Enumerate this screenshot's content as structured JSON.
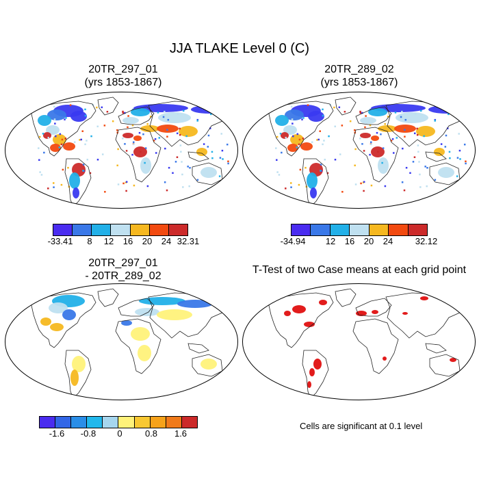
{
  "title": "JJA TLAKE Level 0 (C)",
  "panels": {
    "top_left": {
      "title_line1": "20TR_297_01",
      "title_line2": "(yrs 1853-1867)"
    },
    "top_right": {
      "title_line1": "20TR_289_02",
      "title_line2": "(yrs 1853-1867)"
    },
    "bottom_left": {
      "title_line1": "20TR_297_01",
      "title_line2": "- 20TR_289_02"
    },
    "bottom_right": {
      "title_line1": "T-Test of two Case means at each grid point"
    }
  },
  "colorbar_top_left": {
    "colors": [
      "#4a2cf0",
      "#3a78e8",
      "#22b0e8",
      "#bfe0f0",
      "#f6b820",
      "#f24a10",
      "#cc2a2a"
    ],
    "labels": [
      "-33.41",
      "8",
      "12",
      "16",
      "20",
      "24",
      "32.31"
    ]
  },
  "colorbar_top_right": {
    "colors": [
      "#4a2cf0",
      "#3a78e8",
      "#22b0e8",
      "#bfe0f0",
      "#f6b820",
      "#f24a10",
      "#cc2a2a"
    ],
    "labels": [
      "-34.94",
      "12",
      "16",
      "20",
      "24",
      "32.12"
    ]
  },
  "colorbar_diff": {
    "colors": [
      "#4a2cf0",
      "#3266e6",
      "#2a8ee8",
      "#22b8ec",
      "#a6d6ee",
      "#fff27a",
      "#f8c832",
      "#f6a21a",
      "#f07a1a",
      "#cc2a2a"
    ],
    "labels": [
      "-1.6",
      "-0.8",
      "0",
      "0.8",
      "1.6"
    ]
  },
  "significance_note": "Cells are significant at 0.1 level",
  "map_colors": {
    "cold": "#3a3af0",
    "cool": "#3a78e8",
    "sky": "#22b0e8",
    "pale": "#bfe0f0",
    "warm": "#f6b820",
    "hot": "#f24a10",
    "red": "#cc2a2a",
    "yellow": "#fff27a",
    "sig": "#e01010"
  }
}
